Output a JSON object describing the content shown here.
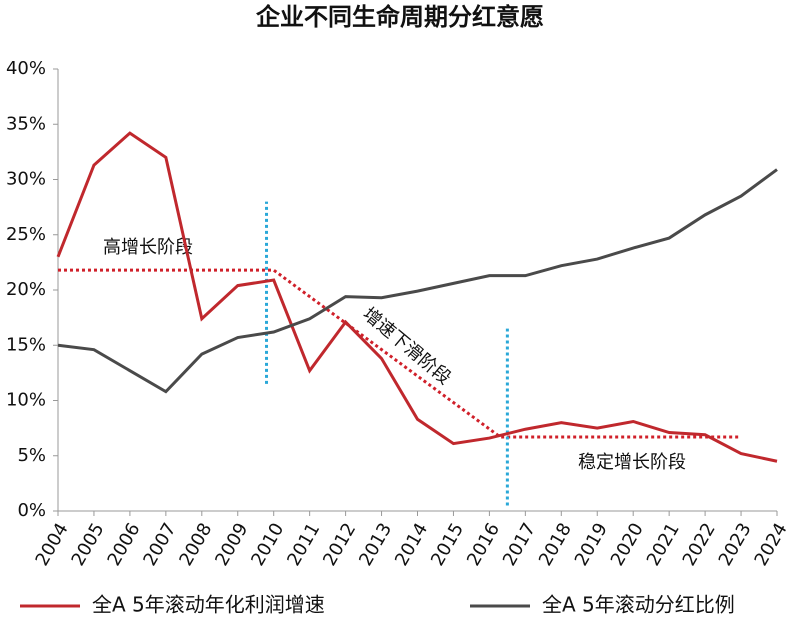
{
  "chart_data": {
    "type": "line",
    "title": "企业不同生命周期分红意愿",
    "categories": [
      "2004",
      "2005",
      "2006",
      "2007",
      "2008",
      "2009",
      "2010",
      "2011",
      "2012",
      "2013",
      "2014",
      "2015",
      "2016",
      "2017",
      "2018",
      "2019",
      "2020",
      "2021",
      "2022",
      "2023",
      "2024"
    ],
    "series": [
      {
        "name": "全A 5年滚动年化利润增速",
        "color": "#c0282d",
        "values": [
          23.0,
          31.3,
          34.2,
          32.0,
          17.4,
          20.4,
          20.9,
          12.7,
          17.1,
          13.8,
          8.3,
          6.1,
          6.6,
          7.4,
          8.0,
          7.5,
          8.1,
          7.1,
          6.9,
          5.2,
          4.5
        ]
      },
      {
        "name": "全A 5年滚动分红比例",
        "color": "#4a4a4a",
        "values": [
          15.0,
          14.6,
          12.7,
          10.8,
          14.2,
          15.7,
          16.2,
          17.4,
          19.4,
          19.3,
          19.9,
          20.6,
          21.3,
          21.3,
          22.2,
          22.8,
          23.8,
          24.7,
          26.8,
          28.5,
          30.9
        ]
      }
    ],
    "ylim": [
      0,
      40
    ],
    "yticks": [
      {
        "value": 0,
        "label": "0%"
      },
      {
        "value": 5,
        "label": "5%"
      },
      {
        "value": 10,
        "label": "10%"
      },
      {
        "value": 15,
        "label": "15%"
      },
      {
        "value": 20,
        "label": "20%"
      },
      {
        "value": 25,
        "label": "25%"
      },
      {
        "value": 30,
        "label": "30%"
      },
      {
        "value": 35,
        "label": "35%"
      },
      {
        "value": 40,
        "label": "40%"
      }
    ],
    "trend_lines": {
      "color": "#d0202a",
      "points": [
        [
          0,
          21.8
        ],
        [
          6,
          21.8
        ],
        [
          12.3,
          6.7
        ],
        [
          19,
          6.7
        ]
      ]
    },
    "phase_dividers": {
      "color": "#2aa8d8",
      "lines": [
        {
          "x": 5.8,
          "y": [
            11.5,
            28
          ]
        },
        {
          "x": 12.5,
          "y": [
            0.5,
            16.5
          ]
        }
      ]
    },
    "annotations": [
      "高增长阶段",
      "增速下滑阶段",
      "稳定增长阶段"
    ]
  }
}
